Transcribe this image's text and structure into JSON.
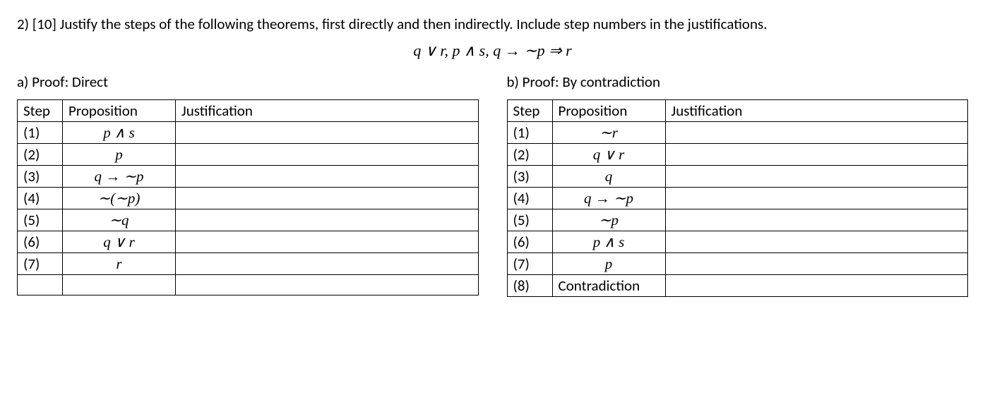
{
  "problem": {
    "text": "2) [10] Justify the steps of the following theorems, first directly and then indirectly. Include step numbers in the justifications.",
    "theorem": "q ∨ r, p ∧ s, q → ∼p ⇒ r"
  },
  "headers": {
    "step": "Step",
    "prop": "Proposition",
    "just": "Justification"
  },
  "proofA": {
    "title": "a) Proof: Direct",
    "rows": [
      {
        "step": "(1)",
        "prop": "p ∧ s",
        "just": ""
      },
      {
        "step": "(2)",
        "prop": "p",
        "just": ""
      },
      {
        "step": "(3)",
        "prop": "q → ∼p",
        "just": ""
      },
      {
        "step": "(4)",
        "prop": "∼(∼p)",
        "just": ""
      },
      {
        "step": "(5)",
        "prop": "∼q",
        "just": ""
      },
      {
        "step": "(6)",
        "prop": "q ∨ r",
        "just": ""
      },
      {
        "step": "(7)",
        "prop": "r",
        "just": ""
      },
      {
        "step": "",
        "prop": "",
        "just": ""
      }
    ]
  },
  "proofB": {
    "title": "b) Proof: By contradiction",
    "rows": [
      {
        "step": "(1)",
        "prop": "∼r",
        "just": ""
      },
      {
        "step": "(2)",
        "prop": "q ∨ r",
        "just": ""
      },
      {
        "step": "(3)",
        "prop": "q",
        "just": ""
      },
      {
        "step": "(4)",
        "prop": "q → ∼p",
        "just": ""
      },
      {
        "step": "(5)",
        "prop": "∼p",
        "just": ""
      },
      {
        "step": "(6)",
        "prop": "p ∧ s",
        "just": ""
      },
      {
        "step": "(7)",
        "prop": "p",
        "just": ""
      },
      {
        "step": "(8)",
        "prop": "Contradiction",
        "propPlain": true,
        "just": ""
      }
    ]
  }
}
